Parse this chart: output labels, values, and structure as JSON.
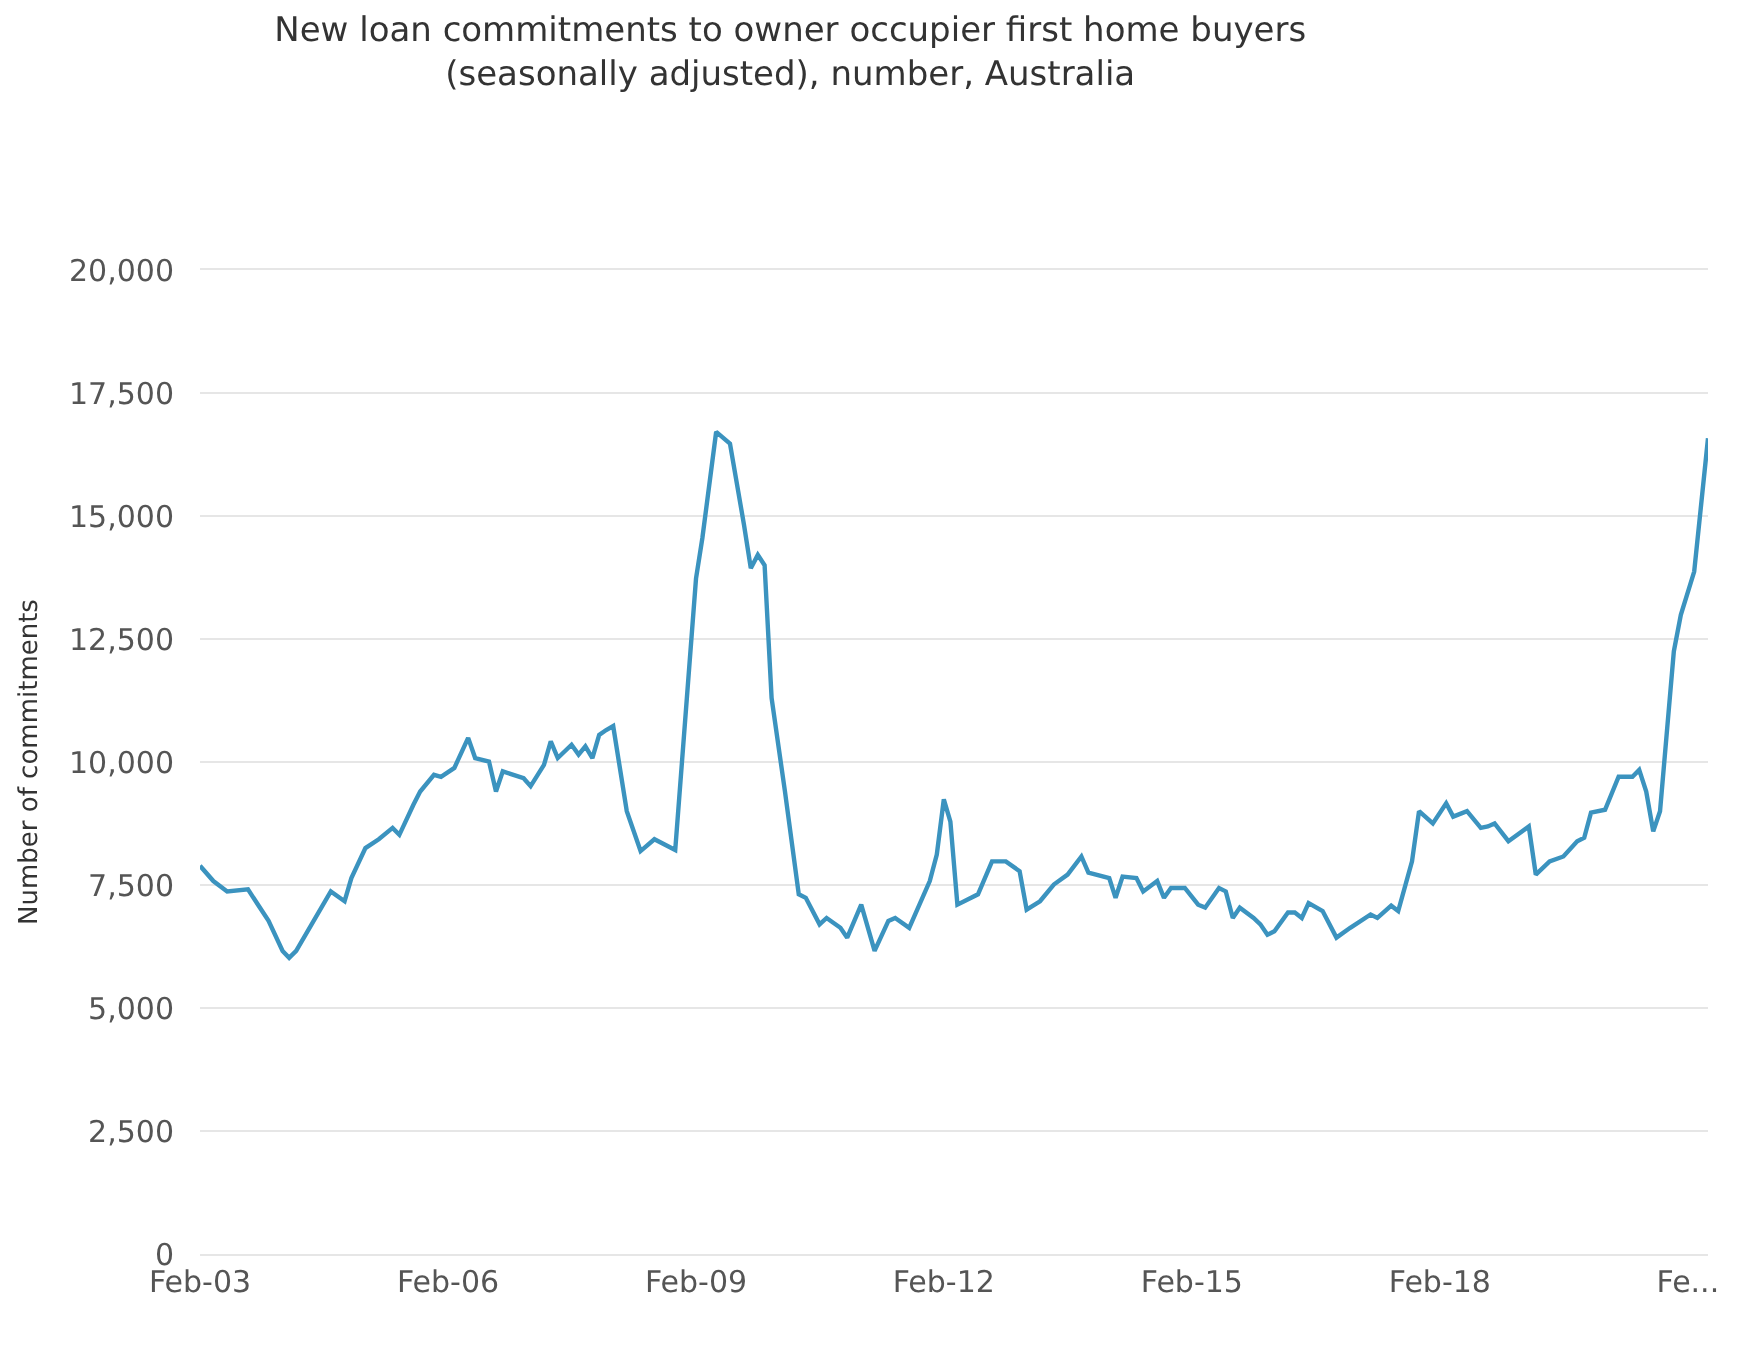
{
  "chart_data": {
    "type": "line",
    "title": "New loan commitments to owner occupier first home buyers\n(seasonally adjusted), number, Australia",
    "ylabel": "Number of commitments",
    "x": [
      "2003-02",
      "2003-04",
      "2003-06",
      "2003-09",
      "2003-12",
      "2004-02",
      "2004-03",
      "2004-04",
      "2004-09",
      "2004-11",
      "2004-12",
      "2005-02",
      "2005-04",
      "2005-06",
      "2005-07",
      "2005-09",
      "2005-10",
      "2005-12",
      "2006-01",
      "2006-03",
      "2006-05",
      "2006-06",
      "2006-08",
      "2006-09",
      "2006-10",
      "2007-01",
      "2007-02",
      "2007-04",
      "2007-05",
      "2007-06",
      "2007-08",
      "2007-09",
      "2007-10",
      "2007-11",
      "2007-12",
      "2008-01",
      "2008-02",
      "2008-04",
      "2008-06",
      "2008-08",
      "2008-11",
      "2009-02",
      "2009-03",
      "2009-05",
      "2009-07",
      "2009-09",
      "2009-10",
      "2009-11",
      "2009-12",
      "2010-01",
      "2010-03",
      "2010-05",
      "2010-06",
      "2010-08",
      "2010-09",
      "2010-11",
      "2010-12",
      "2011-02",
      "2011-04",
      "2011-06",
      "2011-07",
      "2011-09",
      "2011-12",
      "2012-01",
      "2012-02",
      "2012-03",
      "2012-04",
      "2012-07",
      "2012-09",
      "2012-11",
      "2013-01",
      "2013-02",
      "2013-04",
      "2013-06",
      "2013-08",
      "2013-10",
      "2013-11",
      "2014-02",
      "2014-03",
      "2014-04",
      "2014-06",
      "2014-07",
      "2014-09",
      "2014-10",
      "2014-11",
      "2015-01",
      "2015-03",
      "2015-04",
      "2015-06",
      "2015-07",
      "2015-08",
      "2015-09",
      "2015-11",
      "2015-12",
      "2016-01",
      "2016-02",
      "2016-04",
      "2016-05",
      "2016-06",
      "2016-07",
      "2016-09",
      "2016-11",
      "2017-01",
      "2017-04",
      "2017-05",
      "2017-07",
      "2017-08",
      "2017-10",
      "2017-11",
      "2018-01",
      "2018-03",
      "2018-04",
      "2018-06",
      "2018-08",
      "2018-09",
      "2018-10",
      "2018-12",
      "2019-03",
      "2019-04",
      "2019-06",
      "2019-08",
      "2019-10",
      "2019-11",
      "2019-12",
      "2020-02",
      "2020-04",
      "2020-06",
      "2020-07",
      "2020-08",
      "2020-09",
      "2020-10",
      "2020-12",
      "2021-01",
      "2021-03",
      "2021-05"
    ],
    "series": [
      {
        "color": "#3b93bf",
        "values": [
          7890,
          7580,
          7370,
          7410,
          6770,
          6160,
          6020,
          6160,
          7370,
          7170,
          7640,
          8250,
          8430,
          8660,
          8520,
          9130,
          9400,
          9740,
          9700,
          9880,
          10490,
          10080,
          10010,
          9400,
          9810,
          9670,
          9510,
          9940,
          10420,
          10080,
          10350,
          10150,
          10320,
          10080,
          10550,
          10650,
          10730,
          9000,
          8190,
          8430,
          8210,
          13730,
          14550,
          16710,
          16470,
          14820,
          13940,
          14210,
          14000,
          11300,
          9400,
          7310,
          7240,
          6700,
          6830,
          6630,
          6430,
          7100,
          6160,
          6770,
          6830,
          6630,
          7580,
          8120,
          9240,
          8790,
          7100,
          7310,
          7980,
          7980,
          7780,
          7000,
          7170,
          7510,
          7710,
          8080,
          7750,
          7640,
          7240,
          7670,
          7640,
          7370,
          7580,
          7240,
          7440,
          7440,
          7100,
          7040,
          7440,
          7370,
          6830,
          7040,
          6830,
          6700,
          6490,
          6560,
          6940,
          6940,
          6830,
          7130,
          6970,
          6430,
          6630,
          6900,
          6830,
          7080,
          6970,
          7980,
          9000,
          8750,
          9160,
          8890,
          9000,
          8660,
          8690,
          8750,
          8390,
          8690,
          7710,
          7980,
          8080,
          8390,
          8460,
          8970,
          9030,
          9700,
          9700,
          9840,
          9400,
          8590,
          9000,
          12250,
          12990,
          13870,
          16580
        ]
      }
    ],
    "xlim": [
      "2003-02",
      "2021-05"
    ],
    "xticks": [
      {
        "value": "2003-02",
        "label": "Feb-03"
      },
      {
        "value": "2006-02",
        "label": "Feb-06"
      },
      {
        "value": "2009-02",
        "label": "Feb-09"
      },
      {
        "value": "2012-02",
        "label": "Feb-12"
      },
      {
        "value": "2015-02",
        "label": "Feb-15"
      },
      {
        "value": "2018-02",
        "label": "Feb-18"
      },
      {
        "value": "2021-02",
        "label": "Fe..."
      }
    ],
    "ylim": [
      0,
      20000
    ],
    "yticks": [
      {
        "value": 0,
        "label": "0"
      },
      {
        "value": 2500,
        "label": "2,500"
      },
      {
        "value": 5000,
        "label": "5,000"
      },
      {
        "value": 7500,
        "label": "7,500"
      },
      {
        "value": 10000,
        "label": "10,000"
      },
      {
        "value": 12500,
        "label": "12,500"
      },
      {
        "value": 15000,
        "label": "15,000"
      },
      {
        "value": 17500,
        "label": "17,500"
      },
      {
        "value": 20000,
        "label": "20,000"
      }
    ],
    "grid": "y",
    "marker": "none",
    "line_style": "solid"
  }
}
